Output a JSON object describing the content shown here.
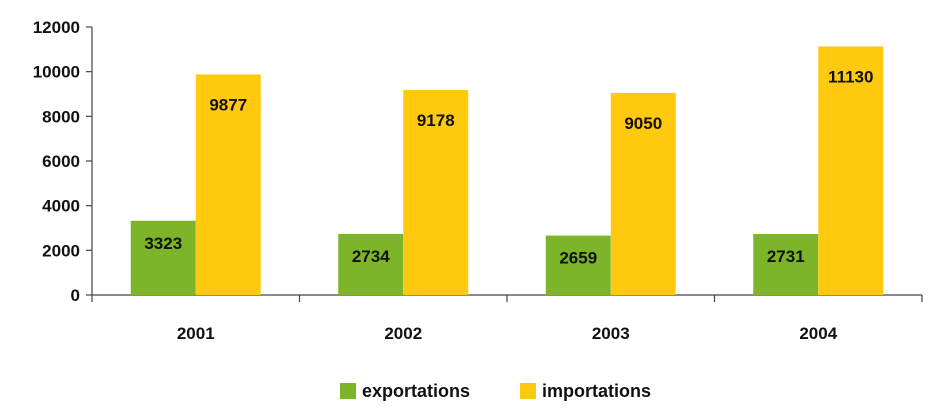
{
  "chart_data": {
    "type": "bar",
    "categories": [
      "2001",
      "2002",
      "2003",
      "2004"
    ],
    "series": [
      {
        "name": "exportations",
        "values": [
          3323,
          2734,
          2659,
          2731
        ],
        "color": "#7db52a"
      },
      {
        "name": "importations",
        "values": [
          9877,
          9178,
          9050,
          11130
        ],
        "color": "#ffc90e"
      }
    ],
    "y_ticks": [
      "0",
      "2000",
      "4000",
      "6000",
      "8000",
      "10000",
      "12000"
    ],
    "ylim": [
      0,
      12000
    ],
    "grid": false,
    "legend_position": "bottom"
  }
}
